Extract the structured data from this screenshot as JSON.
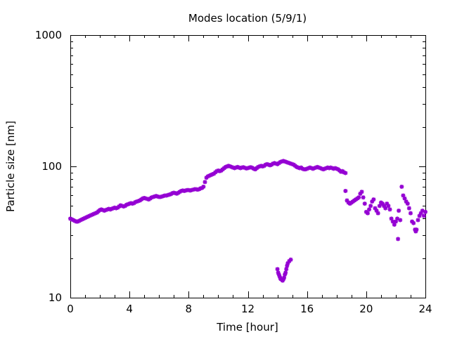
{
  "chart_data": {
    "type": "scatter",
    "title": "Modes location (5/9/1)",
    "xlabel": "Time [hour]",
    "ylabel": "Particle size [nm]",
    "xlim": [
      0,
      24
    ],
    "ylim": [
      10,
      1000
    ],
    "yscale": "log",
    "grid": false,
    "legend": "none",
    "marker_color": "#9400d3",
    "x_ticks": [
      0,
      4,
      8,
      12,
      16,
      20,
      24
    ],
    "x_tick_labels": [
      "0",
      "4",
      "8",
      "12",
      "16",
      "20",
      "24"
    ],
    "y_ticks": [
      10,
      100,
      1000
    ],
    "y_tick_labels": [
      "10",
      "100",
      "1000"
    ],
    "series": [
      {
        "points": [
          [
            0.0,
            40
          ],
          [
            0.1,
            39.5
          ],
          [
            0.2,
            39
          ],
          [
            0.3,
            38.5
          ],
          [
            0.4,
            38
          ],
          [
            0.5,
            38
          ],
          [
            0.6,
            38.5
          ],
          [
            0.7,
            39
          ],
          [
            0.8,
            39.5
          ],
          [
            0.9,
            40
          ],
          [
            1.0,
            40.5
          ],
          [
            1.1,
            41
          ],
          [
            1.2,
            41.5
          ],
          [
            1.3,
            42
          ],
          [
            1.4,
            42.5
          ],
          [
            1.5,
            43
          ],
          [
            1.6,
            43.5
          ],
          [
            1.7,
            44
          ],
          [
            1.8,
            44.5
          ],
          [
            1.9,
            45.5
          ],
          [
            2.0,
            46.5
          ],
          [
            2.1,
            47
          ],
          [
            2.2,
            46.5
          ],
          [
            2.3,
            46
          ],
          [
            2.4,
            46.5
          ],
          [
            2.5,
            47
          ],
          [
            2.6,
            47.5
          ],
          [
            2.7,
            47
          ],
          [
            2.8,
            47.5
          ],
          [
            2.9,
            48
          ],
          [
            3.0,
            48.5
          ],
          [
            3.1,
            48
          ],
          [
            3.2,
            48.5
          ],
          [
            3.3,
            49.5
          ],
          [
            3.4,
            50.5
          ],
          [
            3.5,
            50
          ],
          [
            3.6,
            49.5
          ],
          [
            3.7,
            50
          ],
          [
            3.8,
            51
          ],
          [
            3.9,
            51.5
          ],
          [
            4.0,
            52
          ],
          [
            4.1,
            52.5
          ],
          [
            4.2,
            52
          ],
          [
            4.3,
            52.5
          ],
          [
            4.4,
            53.5
          ],
          [
            4.5,
            54
          ],
          [
            4.6,
            54.5
          ],
          [
            4.7,
            55
          ],
          [
            4.8,
            56
          ],
          [
            4.9,
            57
          ],
          [
            5.0,
            57.5
          ],
          [
            5.1,
            57
          ],
          [
            5.2,
            56.5
          ],
          [
            5.3,
            56
          ],
          [
            5.4,
            57
          ],
          [
            5.5,
            58
          ],
          [
            5.6,
            58.5
          ],
          [
            5.7,
            59
          ],
          [
            5.8,
            59.5
          ],
          [
            5.9,
            59
          ],
          [
            6.0,
            58.5
          ],
          [
            6.1,
            58.5
          ],
          [
            6.2,
            59
          ],
          [
            6.3,
            59.5
          ],
          [
            6.4,
            60
          ],
          [
            6.5,
            60
          ],
          [
            6.6,
            60.5
          ],
          [
            6.7,
            61
          ],
          [
            6.8,
            61.5
          ],
          [
            6.9,
            62.5
          ],
          [
            7.0,
            63
          ],
          [
            7.1,
            62.5
          ],
          [
            7.2,
            62
          ],
          [
            7.3,
            63
          ],
          [
            7.4,
            64
          ],
          [
            7.5,
            65
          ],
          [
            7.6,
            65.5
          ],
          [
            7.7,
            65
          ],
          [
            7.8,
            65.5
          ],
          [
            7.9,
            66
          ],
          [
            8.0,
            66
          ],
          [
            8.1,
            65.5
          ],
          [
            8.2,
            66
          ],
          [
            8.3,
            66.5
          ],
          [
            8.4,
            67
          ],
          [
            8.5,
            67
          ],
          [
            8.6,
            66.5
          ],
          [
            8.7,
            67
          ],
          [
            8.8,
            68
          ],
          [
            8.9,
            68.5
          ],
          [
            9.0,
            70
          ],
          [
            9.1,
            76
          ],
          [
            9.2,
            82
          ],
          [
            9.3,
            84
          ],
          [
            9.4,
            85
          ],
          [
            9.5,
            86
          ],
          [
            9.6,
            87
          ],
          [
            9.7,
            88
          ],
          [
            9.8,
            90
          ],
          [
            9.9,
            92
          ],
          [
            10.0,
            93
          ],
          [
            10.1,
            92
          ],
          [
            10.2,
            93
          ],
          [
            10.3,
            95
          ],
          [
            10.4,
            97
          ],
          [
            10.5,
            99
          ],
          [
            10.6,
            100
          ],
          [
            10.7,
            101
          ],
          [
            10.8,
            100
          ],
          [
            10.9,
            99
          ],
          [
            11.0,
            98
          ],
          [
            11.1,
            97
          ],
          [
            11.2,
            98
          ],
          [
            11.3,
            99
          ],
          [
            11.4,
            98
          ],
          [
            11.5,
            97
          ],
          [
            11.6,
            98
          ],
          [
            11.7,
            98.5
          ],
          [
            11.8,
            97.5
          ],
          [
            11.9,
            96.5
          ],
          [
            12.0,
            97
          ],
          [
            12.1,
            98
          ],
          [
            12.2,
            98.5
          ],
          [
            12.3,
            97.5
          ],
          [
            12.4,
            96
          ],
          [
            12.5,
            95
          ],
          [
            12.6,
            97
          ],
          [
            12.7,
            99
          ],
          [
            12.8,
            100
          ],
          [
            12.9,
            101
          ],
          [
            13.0,
            100
          ],
          [
            13.1,
            101
          ],
          [
            13.2,
            103
          ],
          [
            13.3,
            104
          ],
          [
            13.4,
            103
          ],
          [
            13.5,
            102
          ],
          [
            13.6,
            103
          ],
          [
            13.7,
            105
          ],
          [
            13.8,
            106
          ],
          [
            13.9,
            105
          ],
          [
            14.0,
            104
          ],
          [
            14.1,
            106
          ],
          [
            14.2,
            108
          ],
          [
            14.3,
            109
          ],
          [
            14.4,
            110
          ],
          [
            14.5,
            109
          ],
          [
            14.6,
            108
          ],
          [
            14.7,
            107
          ],
          [
            14.8,
            106
          ],
          [
            14.9,
            105
          ],
          [
            15.0,
            104
          ],
          [
            15.1,
            103
          ],
          [
            15.2,
            101
          ],
          [
            15.3,
            99
          ],
          [
            15.4,
            98
          ],
          [
            15.5,
            97
          ],
          [
            15.6,
            98
          ],
          [
            15.7,
            96
          ],
          [
            15.8,
            95
          ],
          [
            15.9,
            95
          ],
          [
            16.0,
            96
          ],
          [
            16.1,
            97
          ],
          [
            16.2,
            98
          ],
          [
            16.3,
            97
          ],
          [
            16.4,
            96
          ],
          [
            16.5,
            97
          ],
          [
            16.6,
            98
          ],
          [
            16.7,
            99
          ],
          [
            16.8,
            98
          ],
          [
            16.9,
            97
          ],
          [
            17.0,
            96
          ],
          [
            17.1,
            95
          ],
          [
            17.2,
            96
          ],
          [
            17.3,
            97
          ],
          [
            17.4,
            98
          ],
          [
            17.5,
            97
          ],
          [
            17.6,
            98
          ],
          [
            17.7,
            97
          ],
          [
            17.8,
            96
          ],
          [
            17.9,
            97
          ],
          [
            18.0,
            96
          ],
          [
            18.1,
            95
          ],
          [
            18.2,
            93
          ],
          [
            18.3,
            91
          ],
          [
            18.4,
            92
          ],
          [
            18.5,
            90
          ],
          [
            18.6,
            89
          ]
        ]
      },
      {
        "points": [
          [
            14.0,
            16.5
          ],
          [
            14.05,
            15.5
          ],
          [
            14.1,
            15
          ],
          [
            14.15,
            14.5
          ],
          [
            14.2,
            14
          ],
          [
            14.25,
            13.8
          ],
          [
            14.3,
            13.8
          ],
          [
            14.35,
            13.5
          ],
          [
            14.4,
            13.8
          ],
          [
            14.45,
            14.2
          ],
          [
            14.5,
            15
          ],
          [
            14.55,
            15.5
          ],
          [
            14.6,
            16.5
          ],
          [
            14.65,
            17.5
          ],
          [
            14.7,
            18.3
          ],
          [
            14.8,
            19
          ],
          [
            14.9,
            19.5
          ]
        ]
      },
      {
        "points": [
          [
            18.6,
            65
          ],
          [
            18.7,
            55
          ],
          [
            18.8,
            53
          ],
          [
            18.9,
            52
          ],
          [
            19.0,
            53
          ],
          [
            19.1,
            54
          ],
          [
            19.2,
            55
          ],
          [
            19.3,
            56
          ],
          [
            19.4,
            57
          ],
          [
            19.5,
            58
          ],
          [
            19.6,
            62
          ],
          [
            19.7,
            64
          ],
          [
            19.8,
            58
          ],
          [
            19.9,
            52
          ],
          [
            20.0,
            45
          ],
          [
            20.1,
            44
          ],
          [
            20.2,
            47
          ],
          [
            20.3,
            50
          ],
          [
            20.4,
            54
          ],
          [
            20.5,
            56
          ],
          [
            20.6,
            48
          ],
          [
            20.7,
            46
          ],
          [
            20.8,
            44
          ],
          [
            20.9,
            50
          ],
          [
            21.0,
            53
          ],
          [
            21.1,
            52
          ],
          [
            21.2,
            50
          ],
          [
            21.3,
            48
          ],
          [
            21.4,
            52
          ],
          [
            21.5,
            50
          ],
          [
            21.6,
            47
          ],
          [
            21.7,
            40
          ],
          [
            21.8,
            38
          ],
          [
            21.9,
            36
          ],
          [
            22.0,
            38
          ],
          [
            22.1,
            40
          ],
          [
            22.15,
            28
          ],
          [
            22.2,
            46
          ],
          [
            22.3,
            39
          ],
          [
            22.4,
            70
          ],
          [
            22.5,
            60
          ],
          [
            22.6,
            57
          ],
          [
            22.7,
            54
          ],
          [
            22.8,
            52
          ],
          [
            22.9,
            48
          ],
          [
            23.0,
            44
          ],
          [
            23.1,
            38
          ],
          [
            23.2,
            37
          ],
          [
            23.3,
            33
          ],
          [
            23.35,
            32
          ],
          [
            23.4,
            33
          ],
          [
            23.5,
            39
          ],
          [
            23.6,
            42
          ],
          [
            23.7,
            44
          ],
          [
            23.8,
            46
          ],
          [
            23.9,
            42
          ],
          [
            24.0,
            45
          ]
        ]
      }
    ]
  }
}
